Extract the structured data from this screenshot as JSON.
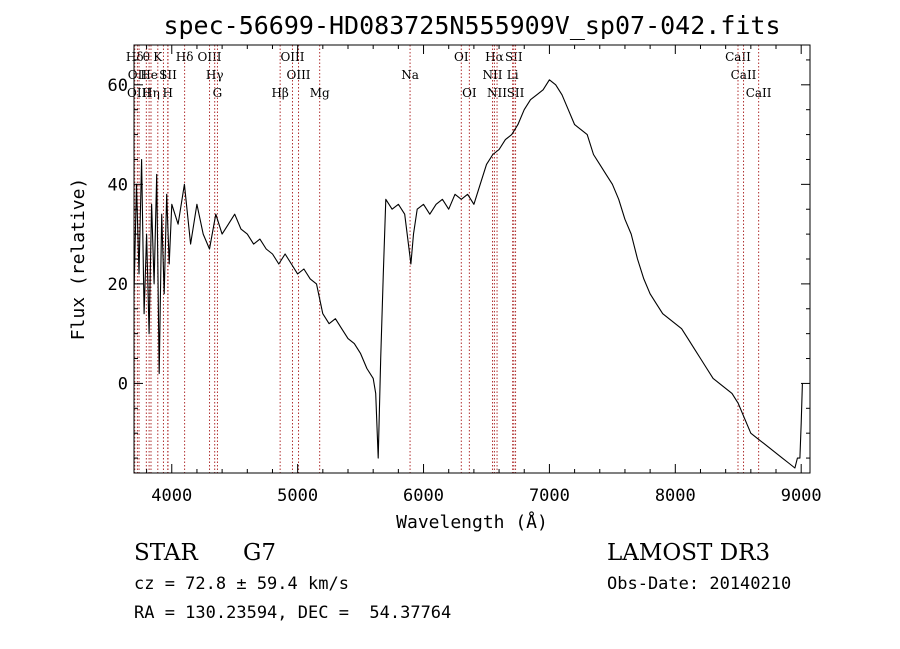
{
  "chart_data": {
    "type": "line",
    "title": "spec-56699-HD083725N555909V_sp07-042.fits",
    "xlabel": "Wavelength (Å)",
    "ylabel": "Flux (relative)",
    "xlim": [
      3700,
      9070
    ],
    "ylim": [
      -18,
      68
    ],
    "x_ticks": [
      4000,
      5000,
      6000,
      7000,
      8000,
      9000
    ],
    "y_ticks": [
      0,
      20,
      40,
      60
    ],
    "grid": false,
    "series": [
      {
        "x": [
          3700,
          3720,
          3740,
          3760,
          3780,
          3800,
          3820,
          3840,
          3860,
          3880,
          3900,
          3920,
          3940,
          3960,
          3980,
          4000,
          4050,
          4100,
          4150,
          4200,
          4250,
          4300,
          4350,
          4400,
          4450,
          4500,
          4550,
          4600,
          4650,
          4700,
          4750,
          4800,
          4850,
          4900,
          4950,
          5000,
          5050,
          5100,
          5150,
          5200,
          5250,
          5300,
          5350,
          5400,
          5450,
          5500,
          5550,
          5600,
          5620,
          5640,
          5660,
          5680,
          5700,
          5750,
          5800,
          5850,
          5900,
          5920,
          5950,
          6000,
          6050,
          6100,
          6150,
          6200,
          6250,
          6300,
          6350,
          6400,
          6450,
          6500,
          6550,
          6600,
          6650,
          6700,
          6750,
          6800,
          6850,
          6900,
          6950,
          7000,
          7050,
          7100,
          7150,
          7200,
          7250,
          7300,
          7350,
          7400,
          7450,
          7500,
          7550,
          7600,
          7650,
          7700,
          7750,
          7800,
          7850,
          7900,
          7950,
          8000,
          8050,
          8100,
          8150,
          8200,
          8250,
          8300,
          8350,
          8400,
          8450,
          8500,
          8550,
          8600,
          8650,
          8700,
          8750,
          8800,
          8850,
          8900,
          8950,
          8970,
          8990,
          9000,
          9010
        ],
        "y": [
          18,
          40,
          22,
          45,
          14,
          30,
          10,
          36,
          20,
          42,
          2,
          34,
          18,
          38,
          24,
          36,
          32,
          40,
          28,
          36,
          30,
          27,
          34,
          30,
          32,
          34,
          31,
          30,
          28,
          29,
          27,
          26,
          24,
          26,
          24,
          22,
          23,
          21,
          20,
          14,
          12,
          13,
          11,
          9,
          8,
          6,
          3,
          1,
          -2,
          -15,
          5,
          22,
          37,
          35,
          36,
          34,
          24,
          30,
          35,
          36,
          34,
          36,
          37,
          35,
          38,
          37,
          38,
          36,
          40,
          44,
          46,
          47,
          49,
          50,
          52,
          55,
          57,
          58,
          59,
          61,
          60,
          58,
          55,
          52,
          51,
          50,
          46,
          44,
          42,
          40,
          37,
          33,
          30,
          25,
          21,
          18,
          16,
          14,
          13,
          12,
          11,
          9,
          7,
          5,
          3,
          1,
          0,
          -1,
          -2,
          -4,
          -7,
          -10,
          -11,
          -12,
          -13,
          -14,
          -15,
          -16,
          -17,
          -15,
          -15,
          -8,
          0
        ]
      }
    ],
    "line_markers": [
      {
        "label": "Hδ",
        "x": 3706,
        "row": 0
      },
      {
        "label": "OII",
        "x": 3727,
        "row": 1
      },
      {
        "label": "OIII",
        "x": 3740,
        "row": 2
      },
      {
        "label": "θ",
        "x": 3798,
        "row": 0
      },
      {
        "label": "He",
        "x": 3820,
        "row": 1
      },
      {
        "label": "Hη",
        "x": 3835,
        "row": 2
      },
      {
        "label": "K",
        "x": 3889,
        "row": 0
      },
      {
        "label": "I",
        "x": 3934,
        "row": 1
      },
      {
        "label": "H",
        "x": 3968,
        "row": 2
      },
      {
        "label": "SII",
        "x": 3970,
        "row": 1
      },
      {
        "label": "Hδ",
        "x": 4102,
        "row": 0
      },
      {
        "label": "OIII",
        "x": 4300,
        "row": 0
      },
      {
        "label": "Hγ",
        "x": 4341,
        "row": 1
      },
      {
        "label": "G",
        "x": 4363,
        "row": 2
      },
      {
        "label": "Hβ",
        "x": 4861,
        "row": 2
      },
      {
        "label": "OIII",
        "x": 4959,
        "row": 0
      },
      {
        "label": "OIII",
        "x": 5007,
        "row": 1
      },
      {
        "label": "Mg",
        "x": 5175,
        "row": 2
      },
      {
        "label": "Na",
        "x": 5893,
        "row": 1
      },
      {
        "label": "OI",
        "x": 6300,
        "row": 0
      },
      {
        "label": "OI",
        "x": 6364,
        "row": 2
      },
      {
        "label": "Hα",
        "x": 6563,
        "row": 0
      },
      {
        "label": "NII",
        "x": 6548,
        "row": 1
      },
      {
        "label": "NII",
        "x": 6584,
        "row": 2
      },
      {
        "label": "SII",
        "x": 6717,
        "row": 0
      },
      {
        "label": "Li",
        "x": 6708,
        "row": 1
      },
      {
        "label": "SII",
        "x": 6731,
        "row": 2
      },
      {
        "label": "CaII",
        "x": 8498,
        "row": 0
      },
      {
        "label": "CaII",
        "x": 8542,
        "row": 1
      },
      {
        "label": "CaII",
        "x": 8662,
        "row": 2
      }
    ]
  },
  "info": {
    "object_class": "STAR",
    "subclass": "G7",
    "redshift_line": "cz = 72.8 ± 59.4 km/s",
    "coords_line": "RA = 130.23594, DEC =  54.37764",
    "survey": "LAMOST DR3",
    "obs_date": "Obs-Date: 20140210"
  },
  "colors": {
    "spectrum": "#000000",
    "line_marker": "#b03030",
    "axis": "#000000"
  }
}
